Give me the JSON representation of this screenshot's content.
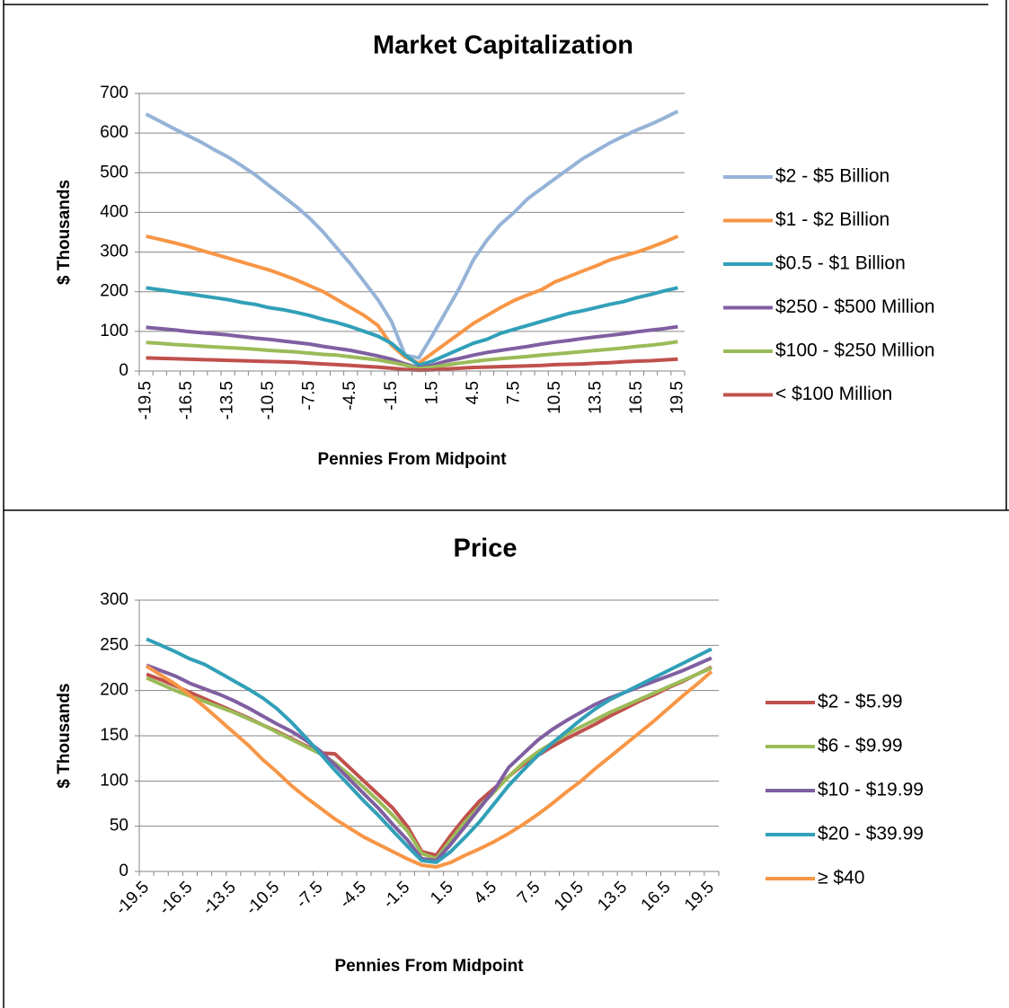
{
  "chart_data": [
    {
      "type": "line",
      "title": "Market Capitalization",
      "x_label": "Pennies From Midpoint",
      "y_label": "$ Thousands",
      "categories": [
        "-19.5",
        null,
        null,
        "-16.5",
        null,
        null,
        "-13.5",
        null,
        null,
        "-10.5",
        null,
        null,
        "-7.5",
        null,
        null,
        "-4.5",
        null,
        null,
        "-1.5",
        null,
        null,
        "1.5",
        null,
        null,
        "4.5",
        null,
        null,
        "7.5",
        null,
        null,
        "10.5",
        null,
        null,
        "13.5",
        null,
        null,
        "16.5",
        null,
        null,
        "19.5"
      ],
      "ylim": [
        0,
        700
      ],
      "yticks": [
        0,
        100,
        200,
        300,
        400,
        500,
        600,
        700
      ],
      "grid": true,
      "legend": "right",
      "series": [
        {
          "name": "$2 - $5 Billion",
          "color": "#95b3d7",
          "values": [
            648,
            630,
            612,
            595,
            578,
            558,
            540,
            518,
            495,
            468,
            442,
            415,
            385,
            350,
            310,
            270,
            225,
            180,
            125,
            40,
            33,
            90,
            150,
            210,
            280,
            330,
            370,
            400,
            435,
            460,
            485,
            510,
            535,
            555,
            575,
            592,
            608,
            622,
            638,
            655
          ]
        },
        {
          "name": "$1 - $2 Billion",
          "color": "#f79646",
          "values": [
            340,
            332,
            324,
            315,
            305,
            295,
            285,
            275,
            265,
            255,
            243,
            230,
            215,
            200,
            180,
            160,
            140,
            115,
            65,
            35,
            20,
            45,
            70,
            95,
            120,
            140,
            160,
            178,
            192,
            205,
            225,
            238,
            252,
            265,
            280,
            290,
            300,
            312,
            325,
            340
          ]
        },
        {
          "name": "$0.5 - $1 Billion",
          "color": "#31a0b8",
          "values": [
            210,
            205,
            200,
            195,
            190,
            185,
            180,
            173,
            168,
            160,
            155,
            148,
            140,
            130,
            122,
            112,
            100,
            88,
            70,
            40,
            15,
            25,
            40,
            55,
            70,
            80,
            95,
            105,
            115,
            125,
            135,
            145,
            152,
            160,
            168,
            175,
            185,
            193,
            202,
            210
          ]
        },
        {
          "name": "$250 - $500 Million",
          "color": "#7f5fa1",
          "values": [
            110,
            107,
            104,
            100,
            97,
            94,
            91,
            87,
            83,
            80,
            76,
            72,
            68,
            62,
            57,
            52,
            45,
            38,
            30,
            18,
            8,
            15,
            25,
            32,
            40,
            47,
            52,
            57,
            62,
            68,
            73,
            77,
            82,
            86,
            90,
            94,
            99,
            103,
            107,
            112
          ]
        },
        {
          "name": "$100 - $250 Million",
          "color": "#9bbb59",
          "values": [
            72,
            70,
            67,
            65,
            63,
            61,
            59,
            57,
            55,
            52,
            50,
            48,
            45,
            42,
            40,
            36,
            32,
            28,
            22,
            15,
            6,
            10,
            15,
            20,
            24,
            28,
            31,
            34,
            37,
            40,
            43,
            46,
            49,
            52,
            55,
            58,
            62,
            65,
            69,
            74
          ]
        },
        {
          "name": "< $100 Million",
          "color": "#c0504d",
          "values": [
            33,
            32,
            31,
            30,
            29,
            28,
            27,
            26,
            25,
            24,
            23,
            22,
            20,
            18,
            16,
            14,
            12,
            10,
            7,
            4,
            2,
            3,
            5,
            7,
            9,
            10,
            11,
            12,
            13,
            14,
            16,
            17,
            18,
            20,
            21,
            23,
            25,
            26,
            28,
            30
          ]
        }
      ]
    },
    {
      "type": "line",
      "title": "Price",
      "x_label": "Pennies From Midpoint",
      "y_label": "$ Thousands",
      "categories": [
        "-19.5",
        null,
        null,
        "-16.5",
        null,
        null,
        "-13.5",
        null,
        null,
        "-10.5",
        null,
        null,
        "-7.5",
        null,
        null,
        "-4.5",
        null,
        null,
        "-1.5",
        null,
        null,
        "1.5",
        null,
        null,
        "4.5",
        null,
        null,
        "7.5",
        null,
        null,
        "10.5",
        null,
        null,
        "13.5",
        null,
        null,
        "16.5",
        null,
        null,
        "19.5"
      ],
      "ylim": [
        0,
        300
      ],
      "yticks": [
        0,
        50,
        100,
        150,
        200,
        250,
        300
      ],
      "grid": true,
      "legend": "right",
      "series": [
        {
          "name": "$2 - $5.99",
          "color": "#c0504d",
          "values": [
            218,
            212,
            205,
            198,
            191,
            184,
            177,
            170,
            162,
            155,
            147,
            139,
            131,
            130,
            115,
            100,
            85,
            70,
            50,
            22,
            18,
            40,
            60,
            78,
            92,
            105,
            118,
            128,
            138,
            147,
            155,
            163,
            172,
            180,
            188,
            195,
            203,
            210,
            218,
            226
          ]
        },
        {
          "name": "$6 - $9.99",
          "color": "#9bbb59",
          "values": [
            214,
            207,
            200,
            194,
            188,
            182,
            176,
            169,
            162,
            154,
            146,
            138,
            130,
            120,
            107,
            93,
            78,
            62,
            45,
            20,
            14,
            35,
            55,
            72,
            88,
            105,
            120,
            132,
            142,
            152,
            160,
            168,
            176,
            183,
            190,
            197,
            204,
            211,
            218,
            225
          ]
        },
        {
          "name": "$10 - $19.99",
          "color": "#7f5fa1",
          "values": [
            228,
            222,
            216,
            208,
            202,
            196,
            189,
            181,
            172,
            163,
            155,
            145,
            133,
            118,
            102,
            86,
            70,
            52,
            35,
            14,
            12,
            30,
            50,
            70,
            90,
            115,
            130,
            145,
            157,
            167,
            176,
            185,
            192,
            198,
            204,
            210,
            216,
            222,
            229,
            236
          ]
        },
        {
          "name": "$20 - $39.99",
          "color": "#31a0b8",
          "values": [
            257,
            250,
            243,
            235,
            229,
            220,
            211,
            202,
            192,
            180,
            165,
            148,
            130,
            112,
            95,
            78,
            62,
            45,
            28,
            12,
            10,
            22,
            38,
            55,
            75,
            95,
            112,
            128,
            142,
            155,
            168,
            180,
            190,
            198,
            206,
            214,
            222,
            230,
            238,
            246
          ]
        },
        {
          "name": "≥ $40",
          "color": "#f79646",
          "values": [
            227,
            217,
            207,
            195,
            182,
            168,
            154,
            140,
            124,
            110,
            95,
            82,
            70,
            58,
            48,
            38,
            30,
            22,
            14,
            7,
            5,
            10,
            18,
            25,
            33,
            42,
            52,
            63,
            75,
            88,
            100,
            114,
            127,
            140,
            153,
            166,
            180,
            194,
            207,
            221
          ]
        }
      ]
    }
  ]
}
